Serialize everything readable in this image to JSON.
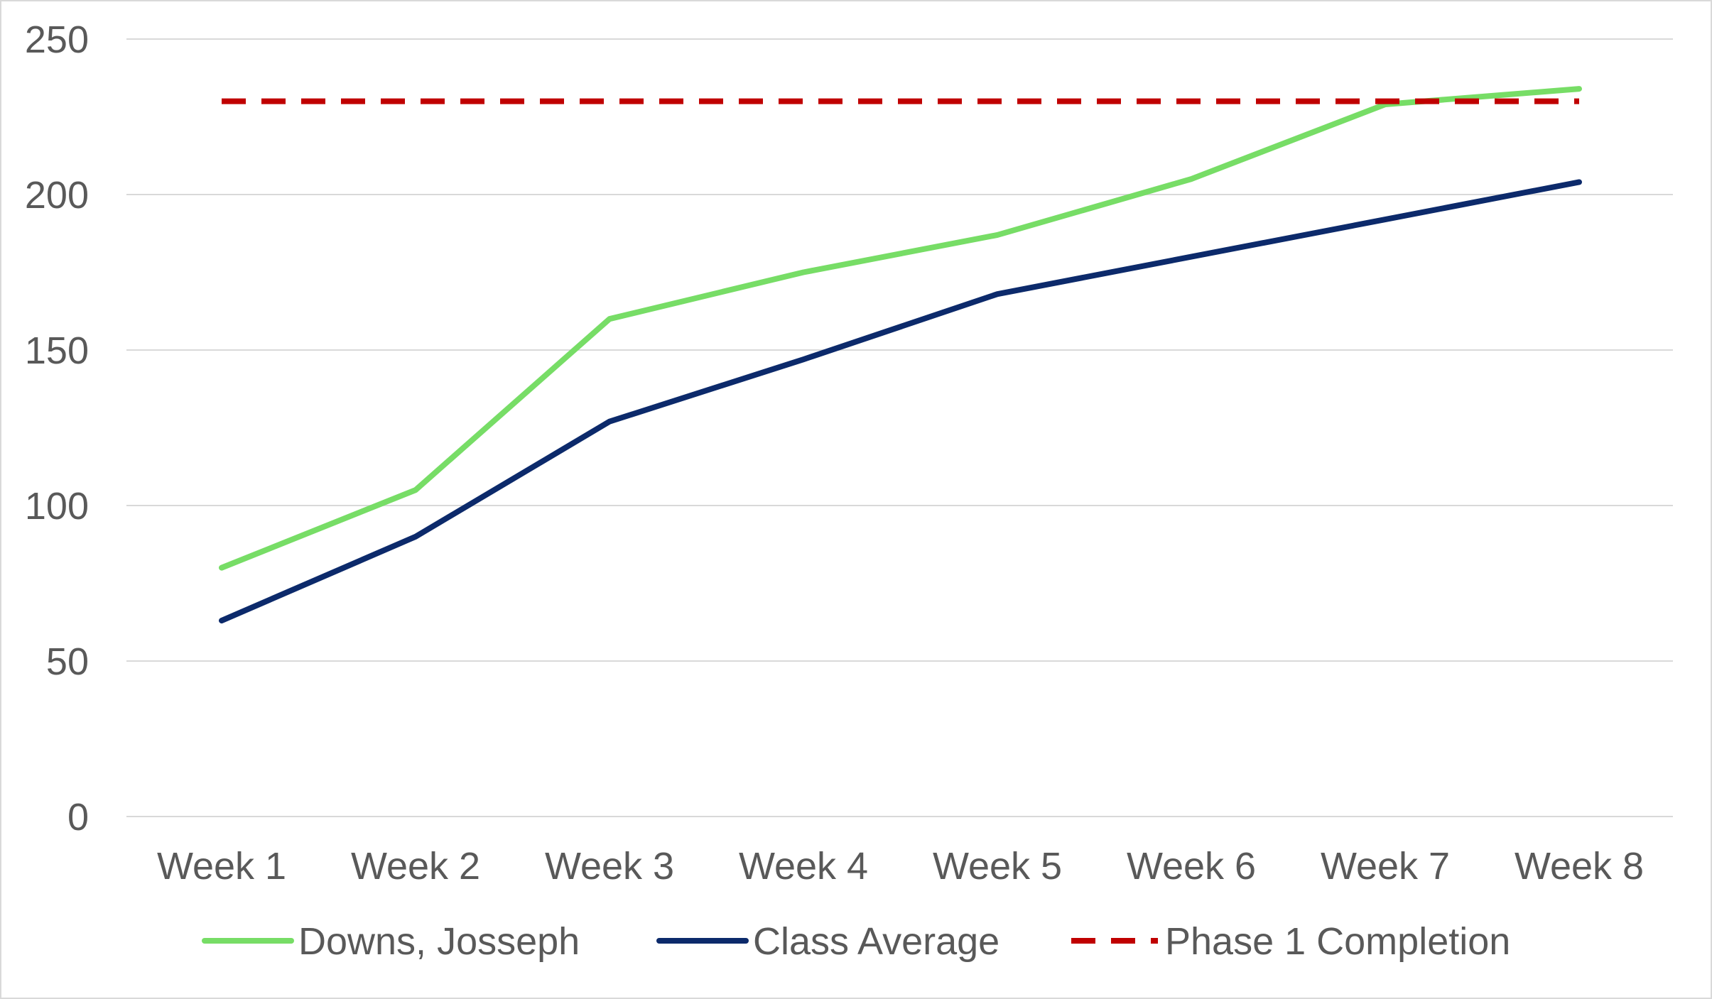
{
  "chart_data": {
    "type": "line",
    "categories": [
      "Week 1",
      "Week 2",
      "Week 3",
      "Week 4",
      "Week 5",
      "Week 6",
      "Week 7",
      "Week 8"
    ],
    "series": [
      {
        "name": "Downs, Josseph",
        "values": [
          80,
          105,
          160,
          175,
          187,
          205,
          229,
          234
        ],
        "color": "#77dd66",
        "dashed": false
      },
      {
        "name": "Class Average",
        "values": [
          63,
          90,
          127,
          147,
          168,
          180,
          192,
          204
        ],
        "color": "#0c2a6b",
        "dashed": false
      },
      {
        "name": "Phase 1 Completion",
        "values": [
          230,
          230,
          230,
          230,
          230,
          230,
          230,
          230
        ],
        "color": "#c00000",
        "dashed": true
      }
    ],
    "ylim": [
      0,
      250
    ],
    "yticks": [
      0,
      50,
      100,
      150,
      200,
      250
    ],
    "title": "",
    "xlabel": "",
    "ylabel": "",
    "grid": true,
    "legend_position": "bottom"
  }
}
